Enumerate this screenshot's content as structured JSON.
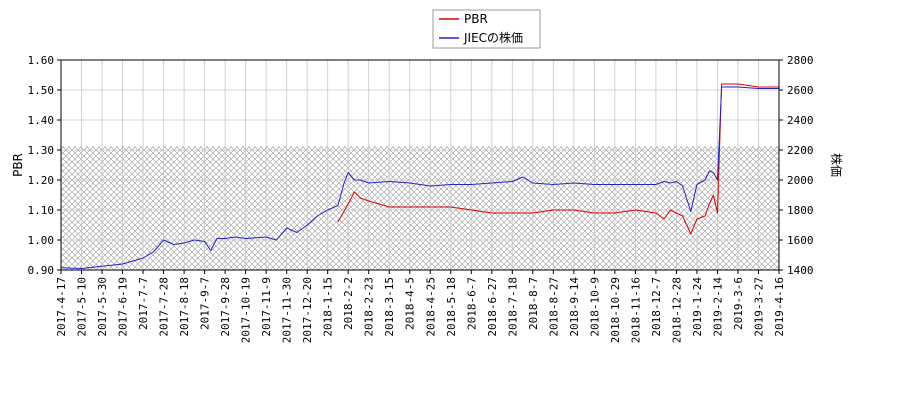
{
  "chart_data": {
    "type": "line",
    "legend": {
      "placement": "top-center",
      "entries": [
        {
          "name": "PBR",
          "color": "#dd0000"
        },
        {
          "name": "JIECの株価",
          "color": "#2222cc"
        }
      ]
    },
    "left_axis": {
      "label": "PBR",
      "ylim": [
        0.9,
        1.6
      ],
      "ticks": [
        "0.90",
        "1.00",
        "1.10",
        "1.20",
        "1.30",
        "1.40",
        "1.50",
        "1.60"
      ]
    },
    "right_axis": {
      "label": "株価",
      "ylim": [
        1400,
        2800
      ],
      "ticks": [
        "1400",
        "1600",
        "1800",
        "2000",
        "2200",
        "2400",
        "2600",
        "2800"
      ]
    },
    "x_tick_labels": [
      "2017-4-17",
      "2017-5-10",
      "2017-5-30",
      "2017-6-19",
      "2017-7-7",
      "2017-7-28",
      "2017-8-18",
      "2017-9-7",
      "2017-9-28",
      "2017-10-19",
      "2017-11-9",
      "2017-11-30",
      "2017-12-20",
      "2018-1-15",
      "2018-2-2",
      "2018-2-23",
      "2018-3-15",
      "2018-4-5",
      "2018-4-25",
      "2018-5-18",
      "2018-6-7",
      "2018-6-27",
      "2018-7-18",
      "2018-8-7",
      "2018-8-27",
      "2018-9-14",
      "2018-10-9",
      "2018-10-29",
      "2018-11-16",
      "2018-12-7",
      "2018-12-28",
      "2019-1-24",
      "2019-2-14",
      "2019-3-6",
      "2019-3-27",
      "2019-4-16"
    ],
    "grid": true,
    "hatched_band_price": [
      1400,
      2225
    ],
    "series": [
      {
        "name": "PBR",
        "axis": "left",
        "color": "#dd0000",
        "x": [
          13.5,
          14.0,
          14.3,
          14.6,
          15.0,
          16,
          17,
          18,
          19,
          20,
          21,
          22,
          23,
          24,
          25,
          26,
          27,
          28,
          29,
          29.4,
          29.7,
          30.0,
          30.3,
          30.7,
          31,
          31.4,
          31.6,
          31.8,
          32,
          32.2,
          32.5,
          33,
          34,
          35
        ],
        "values": [
          1.06,
          1.12,
          1.16,
          1.14,
          1.13,
          1.11,
          1.11,
          1.11,
          1.11,
          1.1,
          1.09,
          1.09,
          1.09,
          1.1,
          1.1,
          1.09,
          1.09,
          1.1,
          1.09,
          1.07,
          1.1,
          1.09,
          1.08,
          1.02,
          1.07,
          1.08,
          1.12,
          1.15,
          1.09,
          1.52,
          1.52,
          1.52,
          1.51,
          1.51
        ]
      },
      {
        "name": "JIECの株価",
        "axis": "right",
        "color": "#2222cc",
        "x": [
          0,
          1,
          2,
          3,
          3.5,
          4,
          4.5,
          5,
          5.5,
          6,
          6.5,
          7,
          7.3,
          7.6,
          8,
          8.5,
          9,
          10,
          10.5,
          11,
          11.5,
          12,
          12.5,
          13,
          13.5,
          13.8,
          14.0,
          14.3,
          14.6,
          15,
          16,
          17,
          18,
          19,
          20,
          21,
          22,
          22.5,
          23,
          24,
          25,
          26,
          27,
          28,
          29,
          29.4,
          29.7,
          30.0,
          30.3,
          30.7,
          31,
          31.4,
          31.6,
          31.8,
          32,
          32.2,
          32.5,
          33,
          34,
          35
        ],
        "values": [
          1415,
          1410,
          1425,
          1440,
          1460,
          1480,
          1520,
          1600,
          1570,
          1580,
          1600,
          1590,
          1530,
          1610,
          1610,
          1620,
          1610,
          1620,
          1600,
          1680,
          1650,
          1700,
          1760,
          1800,
          1830,
          1980,
          2050,
          2000,
          2000,
          1980,
          1990,
          1980,
          1960,
          1970,
          1970,
          1980,
          1990,
          2020,
          1980,
          1970,
          1980,
          1970,
          1970,
          1970,
          1970,
          1990,
          1980,
          1990,
          1960,
          1790,
          1970,
          2000,
          2060,
          2050,
          2000,
          2620,
          2620,
          2620,
          2610,
          2610
        ]
      }
    ]
  }
}
